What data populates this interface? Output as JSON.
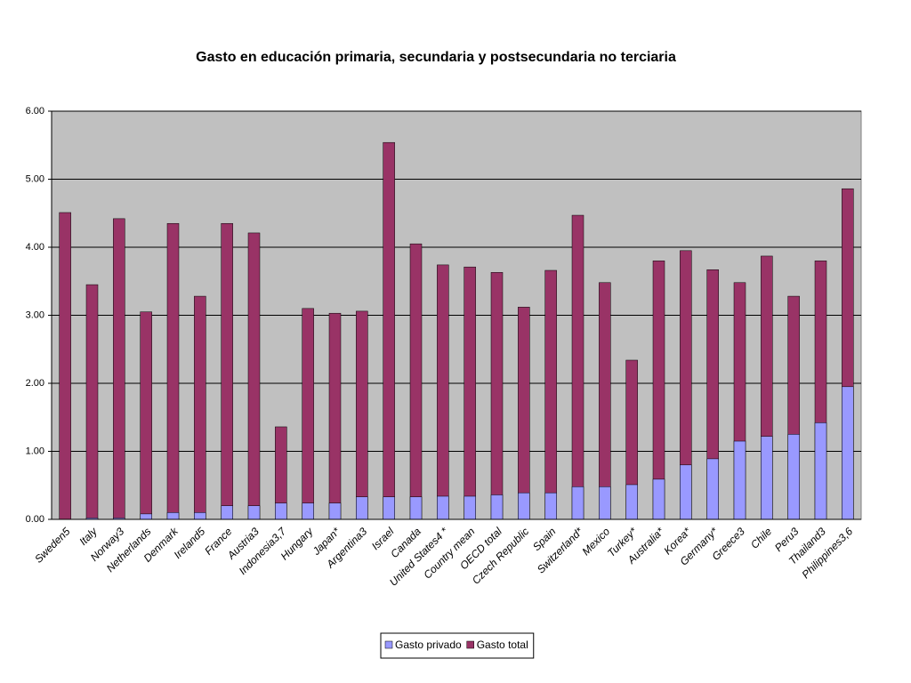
{
  "chart_data": {
    "type": "bar",
    "overlap": true,
    "title": "Gasto en educación primaria, secundaria y postsecundaria no terciaria",
    "categories": [
      "Sweden5",
      "Italy",
      "Norway3",
      "Netherlands",
      "Denmark",
      "Ireland5",
      "France",
      "Austria3",
      "Indonesia3,7",
      "Hungary",
      "Japan*",
      "Argentina3",
      "Israel",
      "Canada",
      "United States4 *",
      "Country mean",
      "OECD total",
      "Czech Republic",
      "Spain",
      "Switzerland*",
      "Mexico",
      "Turkey*",
      "Australia*",
      "Korea*",
      "Germany*",
      "Greece3",
      "Chile",
      "Peru3",
      "Thailand3",
      "Philippines3,6"
    ],
    "series": [
      {
        "name": "Gasto total",
        "color": "#993366",
        "values": [
          4.51,
          3.45,
          4.42,
          3.05,
          4.35,
          3.28,
          4.35,
          4.21,
          1.36,
          3.1,
          3.03,
          3.06,
          5.54,
          4.05,
          3.74,
          3.71,
          3.63,
          3.12,
          3.66,
          4.47,
          3.48,
          2.34,
          3.8,
          3.95,
          3.67,
          3.48,
          3.87,
          3.28,
          3.8,
          4.86
        ]
      },
      {
        "name": "Gasto privado",
        "color": "#9999ff",
        "values": [
          0,
          0.02,
          0.02,
          0.08,
          0.1,
          0.1,
          0.2,
          0.2,
          0.24,
          0.24,
          0.24,
          0.33,
          0.33,
          0.33,
          0.34,
          0.34,
          0.36,
          0.39,
          0.39,
          0.48,
          0.48,
          0.51,
          0.59,
          0.8,
          0.89,
          1.15,
          1.22,
          1.25,
          1.42,
          1.95
        ]
      }
    ],
    "legend_order": [
      "Gasto privado",
      "Gasto total"
    ],
    "ylim": [
      0,
      6
    ],
    "yticks": [
      {
        "value": 0,
        "label": "0.00"
      },
      {
        "value": 1,
        "label": "1.00"
      },
      {
        "value": 2,
        "label": "2.00"
      },
      {
        "value": 3,
        "label": "3.00"
      },
      {
        "value": 4,
        "label": "4.00"
      },
      {
        "value": 5,
        "label": "5.00"
      },
      {
        "value": 6,
        "label": "6.00"
      }
    ],
    "grid": true,
    "legend": "bottom"
  }
}
